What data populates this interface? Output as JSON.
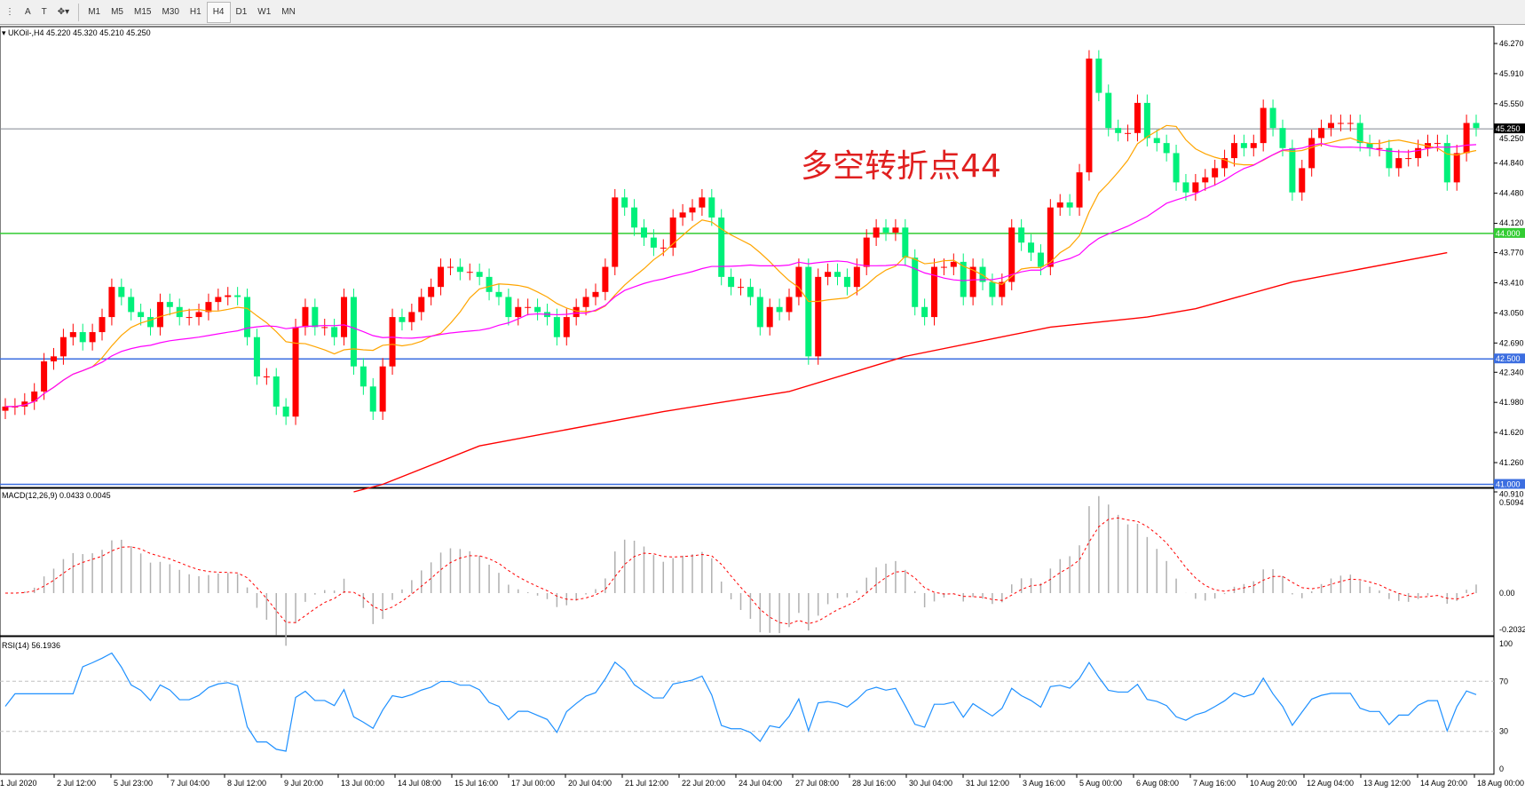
{
  "toolbar": {
    "tools": [
      "A",
      "T",
      "✥▾"
    ],
    "timeframes": [
      "M1",
      "M5",
      "M15",
      "M30",
      "H1",
      "H4",
      "D1",
      "W1",
      "MN"
    ],
    "active_timeframe": "H4"
  },
  "header": {
    "symbol_info": "UKOil-,H4  45.220 45.320 45.210 45.250"
  },
  "annotation": "多空转折点44",
  "macd": {
    "label": "MACD(12,26,9) 0.0433 0.0045",
    "scale": [
      "0.5094",
      "0.00",
      "-0.2032"
    ],
    "range": [
      -0.2032,
      0.5094
    ]
  },
  "rsi": {
    "label": "RSI(14) 56.1936",
    "scale": [
      "100",
      "70",
      "30",
      "0"
    ],
    "levels": [
      70,
      30
    ]
  },
  "colors": {
    "up": "#ff0000",
    "down": "#00f07a",
    "ma_fast": "#ffa500",
    "ma_mid": "#ff00ff",
    "ma_slow": "#ff0000",
    "support_green": "#33cc33",
    "support_blue": "#3c6ee0",
    "macd_signal": "#ff0000",
    "macd_hist": "#b0b0b0",
    "rsi_line": "#1e90ff"
  },
  "chart_data": {
    "type": "candlestick",
    "ylim": [
      40.91,
      46.27
    ],
    "price_ticks": [
      "46.270",
      "45.910",
      "45.550",
      "45.250",
      "44.840",
      "44.480",
      "44.120",
      "43.770",
      "43.410",
      "43.050",
      "42.690",
      "42.340",
      "41.980",
      "41.620",
      "41.260",
      "40.910"
    ],
    "time_labels": [
      "1 Jul 2020",
      "2 Jul 12:00",
      "5 Jul 23:00",
      "7 Jul 04:00",
      "8 Jul 12:00",
      "9 Jul 20:00",
      "13 Jul 00:00",
      "14 Jul 08:00",
      "15 Jul 16:00",
      "17 Jul 00:00",
      "20 Jul 04:00",
      "21 Jul 12:00",
      "22 Jul 20:00",
      "24 Jul 04:00",
      "27 Jul 08:00",
      "28 Jul 16:00",
      "30 Jul 04:00",
      "31 Jul 12:00",
      "3 Aug 16:00",
      "5 Aug 00:00",
      "6 Aug 08:00",
      "7 Aug 16:00",
      "10 Aug 20:00",
      "12 Aug 04:00",
      "13 Aug 12:00",
      "14 Aug 20:00",
      "18 Aug 00:00"
    ],
    "closes": [
      41.93,
      41.93,
      41.99,
      42.11,
      42.47,
      42.53,
      42.76,
      42.82,
      42.7,
      42.82,
      43.0,
      43.36,
      43.24,
      43.06,
      43.0,
      42.88,
      43.18,
      43.12,
      43.0,
      43.0,
      43.06,
      43.18,
      43.24,
      43.26,
      43.24,
      42.76,
      42.29,
      42.29,
      41.93,
      41.81,
      42.88,
      43.12,
      42.88,
      42.88,
      42.76,
      43.24,
      42.41,
      42.17,
      41.87,
      42.41,
      43.0,
      42.94,
      43.06,
      43.24,
      43.36,
      43.6,
      43.6,
      43.54,
      43.54,
      43.48,
      43.3,
      43.24,
      43.0,
      43.12,
      43.12,
      43.06,
      43.0,
      42.76,
      43.0,
      43.12,
      43.24,
      43.3,
      43.6,
      44.43,
      44.31,
      44.07,
      43.95,
      43.83,
      43.83,
      44.19,
      44.25,
      44.31,
      44.43,
      44.19,
      43.48,
      43.36,
      43.36,
      43.24,
      42.88,
      43.12,
      43.06,
      43.24,
      43.6,
      42.53,
      43.48,
      43.54,
      43.48,
      43.36,
      43.6,
      43.95,
      44.07,
      44.01,
      44.07,
      43.71,
      43.12,
      43.0,
      43.6,
      43.6,
      43.66,
      43.24,
      43.6,
      43.42,
      43.24,
      43.42,
      44.07,
      43.89,
      43.77,
      43.6,
      44.31,
      44.37,
      44.31,
      44.73,
      46.09,
      45.68,
      45.26,
      45.2,
      45.2,
      45.56,
      45.14,
      45.08,
      44.96,
      44.61,
      44.49,
      44.61,
      44.67,
      44.78,
      44.9,
      45.08,
      45.02,
      45.08,
      45.5,
      45.26,
      45.02,
      44.49,
      44.78,
      45.14,
      45.26,
      45.32,
      45.32,
      45.32,
      45.08,
      45.02,
      45.02,
      44.78,
      44.9,
      44.9,
      45.02,
      45.08,
      45.08,
      44.61,
      44.96,
      45.32,
      45.26
    ],
    "ma_slow": [
      [
        37,
        40.91
      ],
      [
        40,
        41.0
      ],
      [
        50,
        41.46
      ],
      [
        69,
        41.87
      ],
      [
        82,
        42.11
      ],
      [
        94,
        42.53
      ],
      [
        109,
        42.88
      ],
      [
        119,
        43.0
      ],
      [
        124,
        43.1
      ],
      [
        134,
        43.42
      ],
      [
        150,
        43.77
      ]
    ],
    "hlines": [
      {
        "price": 45.25,
        "label": "45.250",
        "color": "#808890",
        "label_bg": "#000000"
      },
      {
        "price": 44.0,
        "label": "44.000",
        "color": "#33cc33",
        "label_bg": "#33cc33"
      },
      {
        "price": 42.5,
        "label": "42.500",
        "color": "#3c6ee0",
        "label_bg": "#3c6ee0"
      },
      {
        "price": 41.0,
        "label": "41.000",
        "color": "#3c6ee0",
        "label_bg": "#3c6ee0"
      }
    ]
  }
}
